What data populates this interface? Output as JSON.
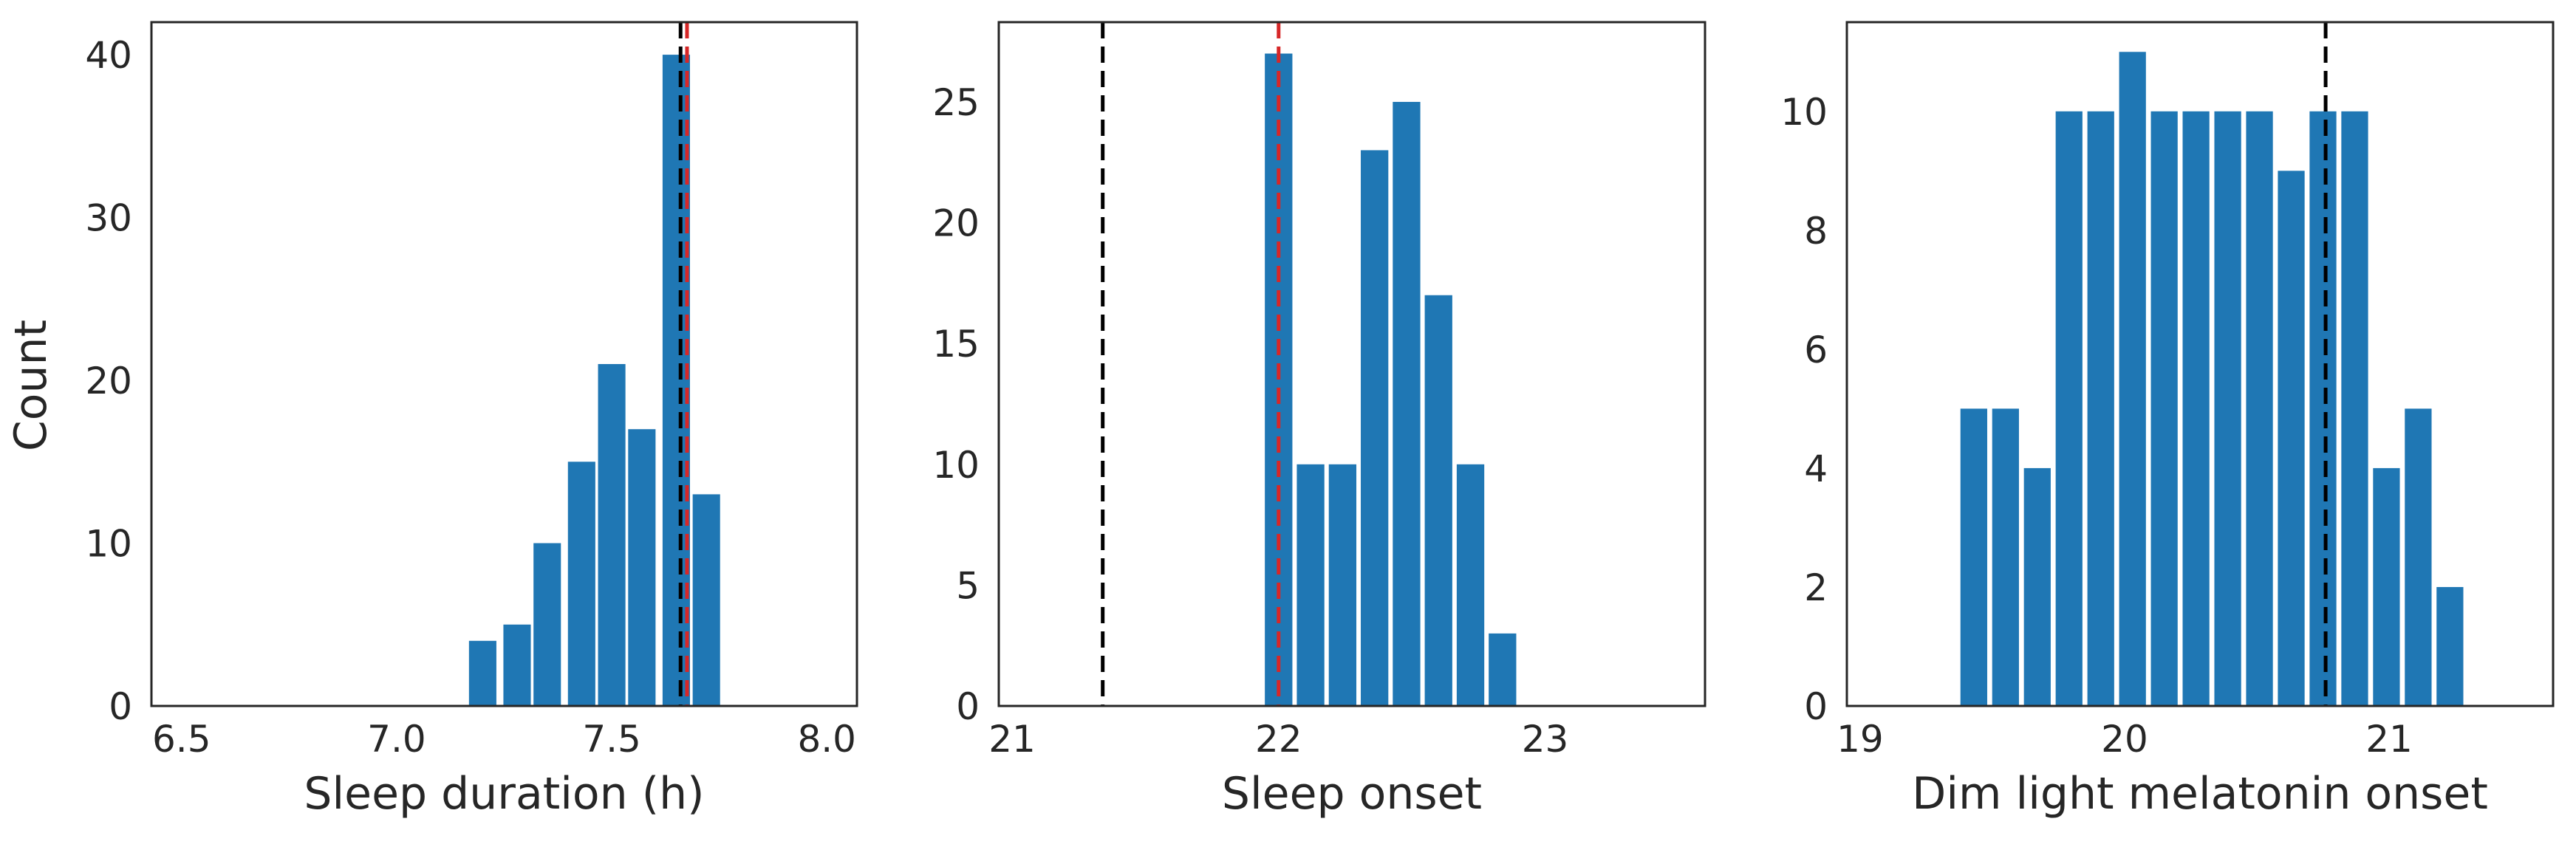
{
  "colors": {
    "bar": "#1f77b4",
    "black_line": "#000000",
    "red_line": "#d62728"
  },
  "y_axis_label": "Count",
  "chart_data": [
    {
      "type": "bar",
      "xlabel": "Sleep duration (h)",
      "ylabel": "Count",
      "xlim": [
        6.43,
        8.07
      ],
      "ylim": [
        0,
        42
      ],
      "xticks": [
        6.5,
        7.0,
        7.5,
        8.0
      ],
      "xtick_labels": [
        "6.5",
        "7.0",
        "7.5",
        "8.0"
      ],
      "yticks": [
        0,
        10,
        20,
        30,
        40
      ],
      "ytick_labels": [
        "0",
        "10",
        "20",
        "30",
        "40"
      ],
      "bin_width": 0.074,
      "bars": [
        {
          "x": 7.2,
          "value": 4
        },
        {
          "x": 7.28,
          "value": 5
        },
        {
          "x": 7.35,
          "value": 10
        },
        {
          "x": 7.43,
          "value": 15
        },
        {
          "x": 7.5,
          "value": 21
        },
        {
          "x": 7.57,
          "value": 17
        },
        {
          "x": 7.65,
          "value": 40
        },
        {
          "x": 7.72,
          "value": 13
        }
      ],
      "vlines": [
        {
          "x": 7.66,
          "color": "black"
        },
        {
          "x": 7.675,
          "color": "red"
        }
      ]
    },
    {
      "type": "bar",
      "xlabel": "Sleep onset",
      "ylabel": "",
      "xlim": [
        20.95,
        23.6
      ],
      "ylim": [
        0,
        28.3
      ],
      "xticks": [
        21,
        22,
        23
      ],
      "xtick_labels": [
        "21",
        "22",
        "23"
      ],
      "yticks": [
        0,
        5,
        10,
        15,
        20,
        25
      ],
      "ytick_labels": [
        "0",
        "5",
        "10",
        "15",
        "20",
        "25"
      ],
      "bin_width": 0.12,
      "bars": [
        {
          "x": 22.0,
          "value": 27
        },
        {
          "x": 22.12,
          "value": 10
        },
        {
          "x": 22.24,
          "value": 10
        },
        {
          "x": 22.36,
          "value": 23
        },
        {
          "x": 22.48,
          "value": 25
        },
        {
          "x": 22.6,
          "value": 17
        },
        {
          "x": 22.72,
          "value": 10
        },
        {
          "x": 22.84,
          "value": 3
        }
      ],
      "vlines": [
        {
          "x": 21.34,
          "color": "black"
        },
        {
          "x": 22.0,
          "color": "red"
        }
      ]
    },
    {
      "type": "bar",
      "xlabel": "Dim light melatonin onset",
      "ylabel": "",
      "xlim": [
        18.95,
        21.62
      ],
      "ylim": [
        0,
        11.5
      ],
      "xticks": [
        19,
        20,
        21
      ],
      "xtick_labels": [
        "19",
        "20",
        "21"
      ],
      "yticks": [
        0,
        2,
        4,
        6,
        8,
        10
      ],
      "ytick_labels": [
        "0",
        "2",
        "4",
        "6",
        "8",
        "10"
      ],
      "bin_width": 0.118,
      "bars": [
        {
          "x": 19.43,
          "value": 5
        },
        {
          "x": 19.55,
          "value": 5
        },
        {
          "x": 19.67,
          "value": 4
        },
        {
          "x": 19.79,
          "value": 10
        },
        {
          "x": 19.91,
          "value": 10
        },
        {
          "x": 20.03,
          "value": 11
        },
        {
          "x": 20.15,
          "value": 10
        },
        {
          "x": 20.27,
          "value": 10
        },
        {
          "x": 20.39,
          "value": 10
        },
        {
          "x": 20.51,
          "value": 10
        },
        {
          "x": 20.63,
          "value": 9
        },
        {
          "x": 20.75,
          "value": 10
        },
        {
          "x": 20.87,
          "value": 10
        },
        {
          "x": 20.99,
          "value": 4
        },
        {
          "x": 21.11,
          "value": 5
        },
        {
          "x": 21.23,
          "value": 2
        }
      ],
      "vlines": [
        {
          "x": 20.76,
          "color": "black"
        }
      ]
    }
  ]
}
